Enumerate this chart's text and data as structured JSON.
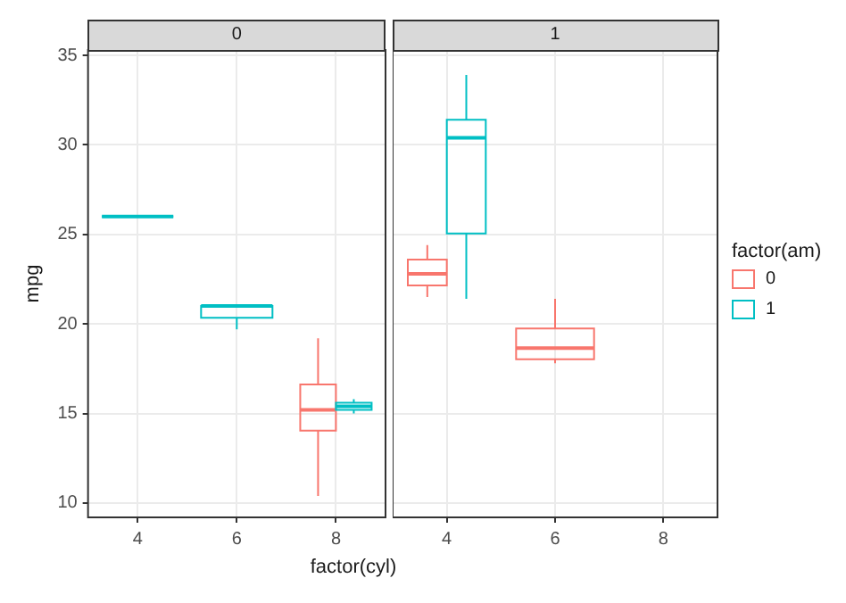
{
  "chart_data": [
    {
      "type": "box",
      "title": "0",
      "xlabel": "factor(cyl)",
      "ylabel": "mpg",
      "categories": [
        "4",
        "6",
        "8"
      ],
      "ylim": [
        9.2,
        35.3
      ],
      "yticks": [
        10,
        15,
        20,
        25,
        30,
        35
      ],
      "grid": true,
      "legend": false,
      "series": [
        {
          "color": "#f8766d",
          "boxes": [
            null,
            null,
            {
              "low": 10.4,
              "q1": 14.05,
              "median": 15.2,
              "q3": 16.625,
              "high": 19.2
            }
          ]
        },
        {
          "color": "#00bfc4",
          "boxes": [
            {
              "low": 26.0,
              "q1": 26.0,
              "median": 26.0,
              "q3": 26.0,
              "high": 26.0
            },
            {
              "low": 19.7,
              "q1": 20.35,
              "median": 21.0,
              "q3": 21.0,
              "high": 21.0
            },
            {
              "low": 15.0,
              "q1": 15.2,
              "median": 15.4,
              "q3": 15.6,
              "high": 15.8
            }
          ]
        }
      ]
    },
    {
      "type": "box",
      "title": "1",
      "legend_title": "factor(am)",
      "categories": [
        "4",
        "6",
        "8"
      ],
      "ylim": [
        9.2,
        35.3
      ],
      "yticks": [
        10,
        15,
        20,
        25,
        30,
        35
      ],
      "grid": true,
      "legend": "right",
      "tick_labels": "x",
      "series": [
        {
          "name": "0",
          "color": "#f8766d",
          "boxes": [
            {
              "low": 21.5,
              "q1": 22.15,
              "median": 22.8,
              "q3": 23.6,
              "high": 24.4
            },
            {
              "low": 17.8,
              "q1": 18.025,
              "median": 18.65,
              "q3": 19.75,
              "high": 21.4
            },
            null
          ]
        },
        {
          "name": "1",
          "color": "#00bfc4",
          "boxes": [
            {
              "low": 21.4,
              "q1": 25.05,
              "median": 30.4,
              "q3": 31.4,
              "high": 33.9
            },
            null,
            null
          ]
        }
      ]
    }
  ]
}
